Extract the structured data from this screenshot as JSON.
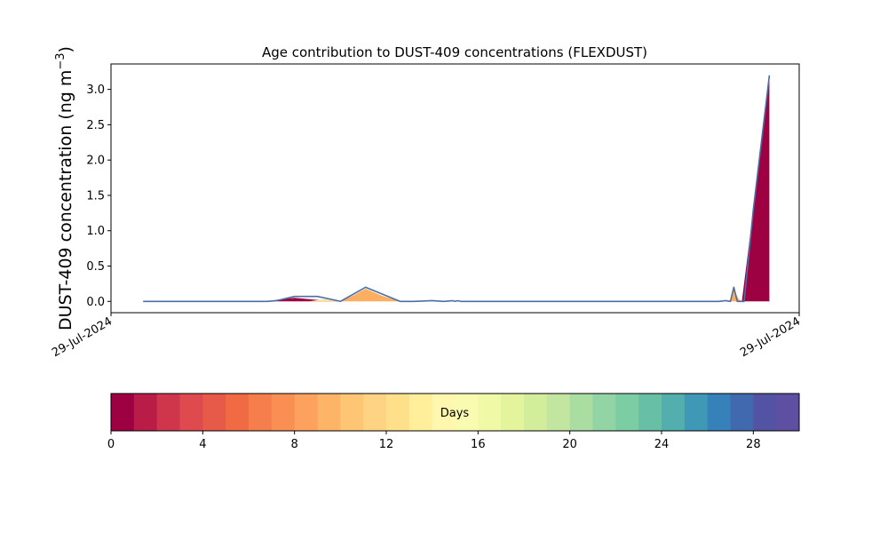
{
  "chart_data": {
    "type": "area",
    "title": "Age contribution to DUST-409 concentrations (FLEXDUST)",
    "ylabel_main": "DUST-409 concentration (ng m",
    "ylabel_sup": "−3",
    "ylabel_end": ")",
    "xlabel": "",
    "xlim": [
      0,
      30
    ],
    "ylim": [
      -0.16,
      3.36
    ],
    "yticks": [
      0.0,
      0.5,
      1.0,
      1.5,
      2.0,
      2.5,
      3.0
    ],
    "ytick_labels": [
      "0.0",
      "0.5",
      "1.0",
      "1.5",
      "2.0",
      "2.5",
      "3.0"
    ],
    "xtick_labels": [
      {
        "x": 0,
        "label": "29-Jul-2024"
      },
      {
        "x": 30,
        "label": "29-Jul-2024"
      }
    ],
    "total_line_color": "#4a6fa5",
    "series": [
      {
        "band": "0-1 days",
        "color": "#9e0142",
        "x": [
          6.8,
          7.3,
          8.0,
          9.0,
          10.0,
          26.9,
          27.2,
          27.5,
          28.0,
          28.7,
          28.7
        ],
        "y": [
          0.0,
          0.025,
          0.05,
          0.02,
          0.0,
          0.0,
          0.0,
          0.0,
          1.3,
          3.2,
          0.0
        ]
      },
      {
        "band": "8-10 days",
        "color": "#fdae61",
        "x": [
          10.0,
          10.6,
          11.1,
          11.8,
          12.6,
          26.8,
          27.0,
          27.15,
          27.35,
          27.5
        ],
        "y": [
          0.0,
          0.09,
          0.18,
          0.08,
          0.0,
          0.0,
          0.01,
          0.17,
          0.04,
          0.0
        ]
      },
      {
        "band": "14-16 days",
        "color": "#fee08b",
        "x": [
          8.6,
          9.3,
          10.0,
          10.5
        ],
        "y": [
          0.0,
          0.03,
          0.0,
          0.0
        ]
      }
    ],
    "total": {
      "x": [
        1.4,
        6.8,
        7.2,
        8.0,
        9.0,
        10.0,
        11.1,
        12.6,
        13.2,
        14.0,
        14.5,
        14.9,
        15.0,
        15.1,
        15.25,
        15.35,
        26.5,
        26.8,
        27.0,
        27.15,
        27.3,
        27.5,
        27.6,
        28.0,
        28.7
      ],
      "y": [
        0.0,
        0.0,
        0.01,
        0.07,
        0.07,
        0.0,
        0.2,
        0.0,
        0.0,
        0.01,
        0.0,
        0.01,
        0.0,
        0.01,
        0.0,
        0.0,
        0.0,
        0.01,
        0.0,
        0.2,
        0.0,
        0.0,
        0.0,
        1.3,
        3.2
      ]
    },
    "colorbar": {
      "label": "Days",
      "range": [
        0,
        30
      ],
      "ticks": [
        0,
        4,
        8,
        12,
        16,
        20,
        24,
        28
      ],
      "tick_labels": [
        "0",
        "4",
        "8",
        "12",
        "16",
        "20",
        "24",
        "28"
      ],
      "colors": [
        "#9e0142",
        "#b91c46",
        "#d0364b",
        "#df4a4f",
        "#e75948",
        "#f06b44",
        "#f67e4d",
        "#f98f53",
        "#fca15e",
        "#fdb467",
        "#fdc574",
        "#fed383",
        "#fee08b",
        "#ffee9a",
        "#fff7ad",
        "#f9fcb0",
        "#f0f9a6",
        "#e3f49c",
        "#d3ee9b",
        "#c2e6a0",
        "#a9dda2",
        "#93d4a4",
        "#7cccA4",
        "#67bfa5",
        "#52afad",
        "#4098b7",
        "#3681ba",
        "#4169b0",
        "#5353a4",
        "#5e4fa2"
      ]
    }
  }
}
